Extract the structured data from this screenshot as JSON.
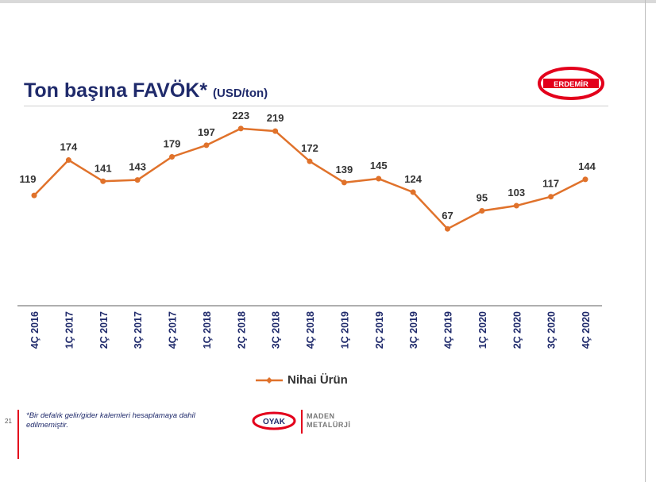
{
  "slide": {
    "title": "Ton başına FAVÖK*",
    "title_unit": "(USD/ton)",
    "page_number": "21",
    "footnote": "*Bir defalık gelir/gider kalemleri hesaplamaya dahil edilmemiştir.",
    "erdemir_logo_text": "ERDEMİR",
    "oyak_logo_text": "OYAK",
    "maden_line1": "MADEN",
    "maden_line2": "METALÜRJİ"
  },
  "colors": {
    "title": "#1f2a6b",
    "series": "#e0722b",
    "brand_red": "#e3001b"
  },
  "chart_data": {
    "type": "line",
    "x": [
      "4Ç 2016",
      "1Ç 2017",
      "2Ç 2017",
      "3Ç 2017",
      "4Ç 2017",
      "1Ç 2018",
      "2Ç 2018",
      "3Ç 2018",
      "4Ç 2018",
      "1Ç 2019",
      "2Ç 2019",
      "3Ç 2019",
      "4Ç 2019",
      "1Ç 2020",
      "2Ç 2020",
      "3Ç 2020",
      "4Ç 2020"
    ],
    "series": [
      {
        "name": "Nihai Ürün",
        "values": [
          119,
          174,
          141,
          143,
          179,
          197,
          223,
          219,
          172,
          139,
          145,
          124,
          67,
          95,
          103,
          117,
          144
        ]
      }
    ],
    "title": "Ton başına FAVÖK*",
    "xlabel": "",
    "ylabel": "",
    "ylim": [
      -55,
      250
    ],
    "grid": false,
    "legend": "bottom-center",
    "data_labels": true
  }
}
